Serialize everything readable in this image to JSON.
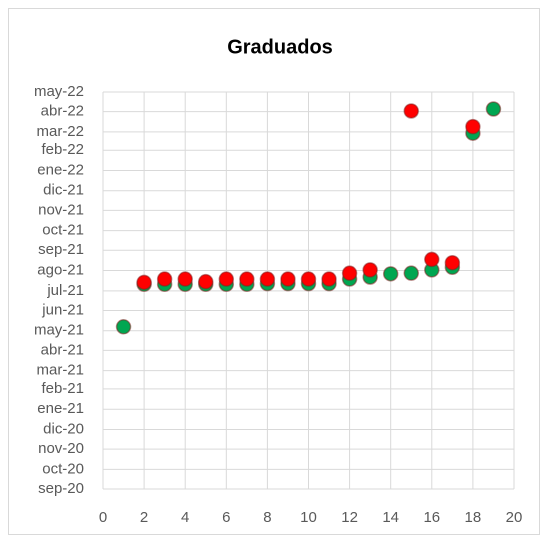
{
  "chart_data": {
    "type": "scatter",
    "title": "Graduados",
    "xlim": [
      0,
      20
    ],
    "xticks": [
      0,
      2,
      4,
      6,
      8,
      10,
      12,
      14,
      16,
      18,
      20
    ],
    "ylim": [
      44075,
      44682
    ],
    "yticks": [
      {
        "value": 44075,
        "label": "sep-20"
      },
      {
        "value": 44105,
        "label": "oct-20"
      },
      {
        "value": 44136,
        "label": "nov-20"
      },
      {
        "value": 44166,
        "label": "dic-20"
      },
      {
        "value": 44197,
        "label": "ene-21"
      },
      {
        "value": 44228,
        "label": "feb-21"
      },
      {
        "value": 44256,
        "label": "mar-21"
      },
      {
        "value": 44287,
        "label": "abr-21"
      },
      {
        "value": 44317,
        "label": "may-21"
      },
      {
        "value": 44348,
        "label": "jun-21"
      },
      {
        "value": 44378,
        "label": "jul-21"
      },
      {
        "value": 44409,
        "label": "ago-21"
      },
      {
        "value": 44440,
        "label": "sep-21"
      },
      {
        "value": 44470,
        "label": "oct-21"
      },
      {
        "value": 44501,
        "label": "nov-21"
      },
      {
        "value": 44531,
        "label": "dic-21"
      },
      {
        "value": 44562,
        "label": "ene-22"
      },
      {
        "value": 44593,
        "label": "feb-22"
      },
      {
        "value": 44621,
        "label": "mar-22"
      },
      {
        "value": 44652,
        "label": "abr-22"
      },
      {
        "value": 44682,
        "label": "may-22"
      }
    ],
    "grid": true,
    "series": [
      {
        "color": "#00a651",
        "x": [
          1,
          2,
          3,
          4,
          5,
          6,
          7,
          8,
          9,
          10,
          11,
          12,
          13,
          14,
          15,
          16,
          17,
          18,
          19
        ],
        "values": [
          44323,
          44388,
          44388,
          44388,
          44388,
          44388,
          44388,
          44389,
          44389,
          44389,
          44389,
          44396,
          44399,
          44404,
          44405,
          44410,
          44414,
          44619,
          44656
        ]
      },
      {
        "color": "#ff0000",
        "x": [
          2,
          3,
          4,
          5,
          6,
          7,
          8,
          9,
          10,
          11,
          12,
          13,
          15,
          16,
          17,
          18
        ],
        "values": [
          44391,
          44396,
          44396,
          44392,
          44396,
          44396,
          44396,
          44396,
          44396,
          44396,
          44405,
          44410,
          44653,
          44426,
          44421,
          44629
        ]
      }
    ]
  }
}
